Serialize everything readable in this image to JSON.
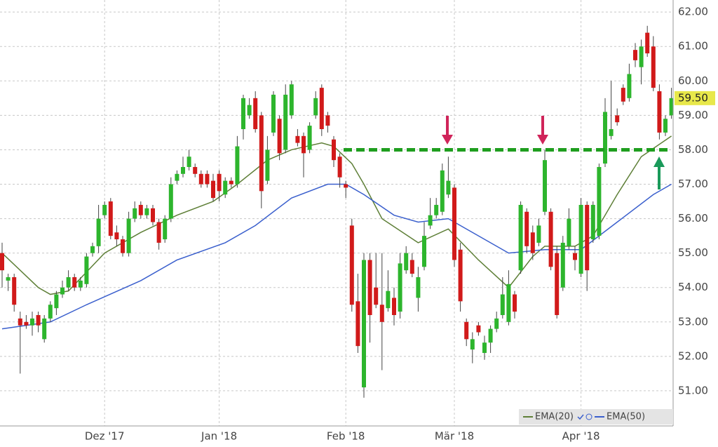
{
  "chart_data": {
    "type": "candlestick",
    "categories": [
      null,
      null,
      null,
      null,
      null,
      null,
      null,
      null,
      null,
      null,
      null,
      null,
      null,
      null,
      null,
      null,
      null,
      "Dez '17",
      null,
      null,
      null,
      null,
      null,
      null,
      null,
      null,
      null,
      null,
      null,
      null,
      null,
      null,
      null,
      null,
      null,
      null,
      "Jan '18",
      null,
      null,
      null,
      null,
      null,
      null,
      null,
      null,
      null,
      null,
      null,
      null,
      null,
      null,
      null,
      null,
      null,
      null,
      null,
      null,
      "Feb '18",
      null,
      null,
      null,
      null,
      null,
      null,
      null,
      null,
      null,
      null,
      null,
      null,
      null,
      null,
      null,
      null,
      null,
      "Mär '18",
      null,
      null,
      null,
      null,
      null,
      null,
      null,
      null,
      null,
      null,
      null,
      null,
      null,
      null,
      null,
      null,
      null,
      null,
      null,
      null,
      "Apr '18",
      null,
      null,
      null,
      null,
      null,
      null,
      null,
      null,
      null,
      null,
      null,
      null,
      null,
      null,
      null
    ],
    "open": [
      55.0,
      54.2,
      54.3,
      53.1,
      53.0,
      52.9,
      53.2,
      52.5,
      53.1,
      53.4,
      53.8,
      54.0,
      54.3,
      54.0,
      54.1,
      55.0,
      55.2,
      56.1,
      56.5,
      55.6,
      55.4,
      55.0,
      56.0,
      56.4,
      56.1,
      56.3,
      55.9,
      55.4,
      56.0,
      57.1,
      57.3,
      57.5,
      57.5,
      57.3,
      57.3,
      57.1,
      57.3,
      56.7,
      57.1,
      57.0,
      58.6,
      59.0,
      59.5,
      59.0,
      57.1,
      58.5,
      58.9,
      58.0,
      59.0,
      58.4,
      58.4,
      58.0,
      59.0,
      59.8,
      59.0,
      58.3,
      57.8,
      57.0,
      55.8,
      53.6,
      51.1,
      54.8,
      54.0,
      53.5,
      53.4,
      53.7,
      53.3,
      54.5,
      54.8,
      53.7,
      54.6,
      55.8,
      56.1,
      56.2,
      56.7,
      56.9,
      55.1,
      53.0,
      52.2,
      52.9,
      52.1,
      52.4,
      52.8,
      53.2,
      53.0,
      53.8,
      54.5,
      56.2,
      55.6,
      55.3,
      56.2,
      56.2,
      55.0,
      54.0,
      55.2,
      55.0,
      54.4,
      56.4,
      55.4,
      55.5,
      57.6,
      58.4,
      59.0,
      59.8,
      59.5,
      60.9,
      60.4,
      61.4,
      61.0,
      59.7,
      58.5,
      59.0
    ],
    "high": [
      55.3,
      54.4,
      54.4,
      53.3,
      53.2,
      53.3,
      53.3,
      53.2,
      53.6,
      53.9,
      54.2,
      54.5,
      54.4,
      54.3,
      55.0,
      55.3,
      56.4,
      56.5,
      56.6,
      55.8,
      55.5,
      56.2,
      56.5,
      56.5,
      56.4,
      56.4,
      56.0,
      56.1,
      57.2,
      57.4,
      57.8,
      58.0,
      57.6,
      57.4,
      57.4,
      57.3,
      57.4,
      57.2,
      57.2,
      58.4,
      59.6,
      59.5,
      59.7,
      59.1,
      58.4,
      59.7,
      59.0,
      59.9,
      60.0,
      58.6,
      58.5,
      58.8,
      59.7,
      59.9,
      59.1,
      58.4,
      57.9,
      57.1,
      56.0,
      54.4,
      55.0,
      55.0,
      55.0,
      55.0,
      54.5,
      54.0,
      55.0,
      55.2,
      55.0,
      54.6,
      55.9,
      56.6,
      56.6,
      57.6,
      57.8,
      57.0,
      55.3,
      53.1,
      52.7,
      53.0,
      52.6,
      52.9,
      53.3,
      54.3,
      54.5,
      53.9,
      56.5,
      56.3,
      55.8,
      56.0,
      58.0,
      56.3,
      55.2,
      55.5,
      56.3,
      55.2,
      56.6,
      56.5,
      56.5,
      57.6,
      59.5,
      60.0,
      59.2,
      59.9,
      60.5,
      61.1,
      61.2,
      61.6,
      61.3,
      59.9,
      59.0,
      59.8
    ],
    "low": [
      54.0,
      53.9,
      53.3,
      51.5,
      52.8,
      52.6,
      52.7,
      52.4,
      53.0,
      53.2,
      53.7,
      53.9,
      53.9,
      53.9,
      54.0,
      54.9,
      55.0,
      56.0,
      55.4,
      55.2,
      54.9,
      54.9,
      55.9,
      56.0,
      56.0,
      55.8,
      55.1,
      55.3,
      55.9,
      57.0,
      57.2,
      57.4,
      57.2,
      56.9,
      56.9,
      56.5,
      56.5,
      56.6,
      56.9,
      56.9,
      58.3,
      58.9,
      58.5,
      56.3,
      57.0,
      58.4,
      57.7,
      57.9,
      58.9,
      58.1,
      57.2,
      57.9,
      58.9,
      58.4,
      58.5,
      57.5,
      56.9,
      56.6,
      53.3,
      52.1,
      50.8,
      52.4,
      53.4,
      51.6,
      53.3,
      52.9,
      53.1,
      54.4,
      54.3,
      53.3,
      54.5,
      55.7,
      56.0,
      56.1,
      56.6,
      54.6,
      53.3,
      52.3,
      51.8,
      52.6,
      51.9,
      52.1,
      52.7,
      53.1,
      52.9,
      53.1,
      54.4,
      55.0,
      54.8,
      55.2,
      56.1,
      54.5,
      53.1,
      53.9,
      55.1,
      54.5,
      54.3,
      53.9,
      55.3,
      55.4,
      57.5,
      58.3,
      58.7,
      59.3,
      59.4,
      60.4,
      59.9,
      60.7,
      59.7,
      58.3,
      58.4,
      58.9
    ],
    "close": [
      54.5,
      54.3,
      53.5,
      52.9,
      52.9,
      53.1,
      52.9,
      53.1,
      53.5,
      53.8,
      54.0,
      54.3,
      54.0,
      54.2,
      54.9,
      55.2,
      56.0,
      56.4,
      55.5,
      55.4,
      55.0,
      56.0,
      56.3,
      56.1,
      56.3,
      55.9,
      55.3,
      56.0,
      57.0,
      57.3,
      57.5,
      57.8,
      57.3,
      57.0,
      57.0,
      56.6,
      56.8,
      57.1,
      57.0,
      58.1,
      59.5,
      59.3,
      58.6,
      56.8,
      58.0,
      59.6,
      57.9,
      59.6,
      59.9,
      58.2,
      57.9,
      58.7,
      59.5,
      58.6,
      58.7,
      57.7,
      57.2,
      56.9,
      53.5,
      52.3,
      54.8,
      53.2,
      53.5,
      53.0,
      53.9,
      53.2,
      54.7,
      55.0,
      54.4,
      54.3,
      55.5,
      56.1,
      56.4,
      57.4,
      57.1,
      54.8,
      53.6,
      52.5,
      52.5,
      52.7,
      52.4,
      52.8,
      53.1,
      53.8,
      54.1,
      53.3,
      56.4,
      55.2,
      55.0,
      55.8,
      57.7,
      54.6,
      53.2,
      55.3,
      56.0,
      54.8,
      56.4,
      54.5,
      56.4,
      57.5,
      59.1,
      58.6,
      58.8,
      59.4,
      60.2,
      60.6,
      61.0,
      60.8,
      59.8,
      58.5,
      58.9,
      59.5
    ],
    "up_color": "#2db52d",
    "down_color": "#d11a1a",
    "series": [
      {
        "name": "EMA(20)",
        "color": "#5e7f37",
        "x": [
          0,
          6,
          8,
          11,
          17,
          23,
          29,
          35,
          39,
          44,
          48,
          53,
          55,
          58,
          60,
          63,
          69,
          74,
          79,
          84,
          88,
          90,
          95,
          98,
          102,
          106,
          111
        ],
        "values": [
          55.0,
          54.0,
          53.8,
          53.9,
          55.0,
          55.6,
          56.1,
          56.5,
          57.0,
          57.7,
          58.0,
          58.2,
          58.1,
          57.6,
          57.0,
          56.0,
          55.3,
          55.7,
          54.8,
          54.0,
          54.9,
          55.2,
          55.2,
          55.5,
          56.7,
          57.8,
          58.4
        ]
      },
      {
        "name": "EMA(50)",
        "color": "#3a5fcd",
        "x": [
          0,
          8,
          14,
          23,
          29,
          37,
          42,
          48,
          54,
          57,
          60,
          65,
          69,
          74,
          79,
          84,
          90,
          96,
          102,
          108,
          111
        ],
        "values": [
          52.8,
          53.0,
          53.5,
          54.2,
          54.8,
          55.3,
          55.8,
          56.6,
          57.0,
          57.0,
          56.7,
          56.1,
          55.9,
          56.0,
          55.5,
          55.0,
          55.1,
          55.1,
          55.9,
          56.7,
          57.0
        ]
      }
    ],
    "resistance_level": 58,
    "resistance_color": "#1f9e1f",
    "last_price": {
      "value": 59.5,
      "label": "59.50"
    },
    "ylim": [
      50.0,
      62.35
    ],
    "yticks": [
      {
        "value": 51,
        "label": "51.00"
      },
      {
        "value": 52,
        "label": "52.00"
      },
      {
        "value": 53,
        "label": "53.00"
      },
      {
        "value": 54,
        "label": "54.00"
      },
      {
        "value": 55,
        "label": "55.00"
      },
      {
        "value": 56,
        "label": "56.00"
      },
      {
        "value": 57,
        "label": "57.00"
      },
      {
        "value": 58,
        "label": "58.00"
      },
      {
        "value": 59,
        "label": "59.00"
      },
      {
        "value": 60,
        "label": "60.00"
      },
      {
        "value": 61,
        "label": "61.00"
      },
      {
        "value": 62,
        "label": "62.00"
      }
    ],
    "grid": true
  }
}
